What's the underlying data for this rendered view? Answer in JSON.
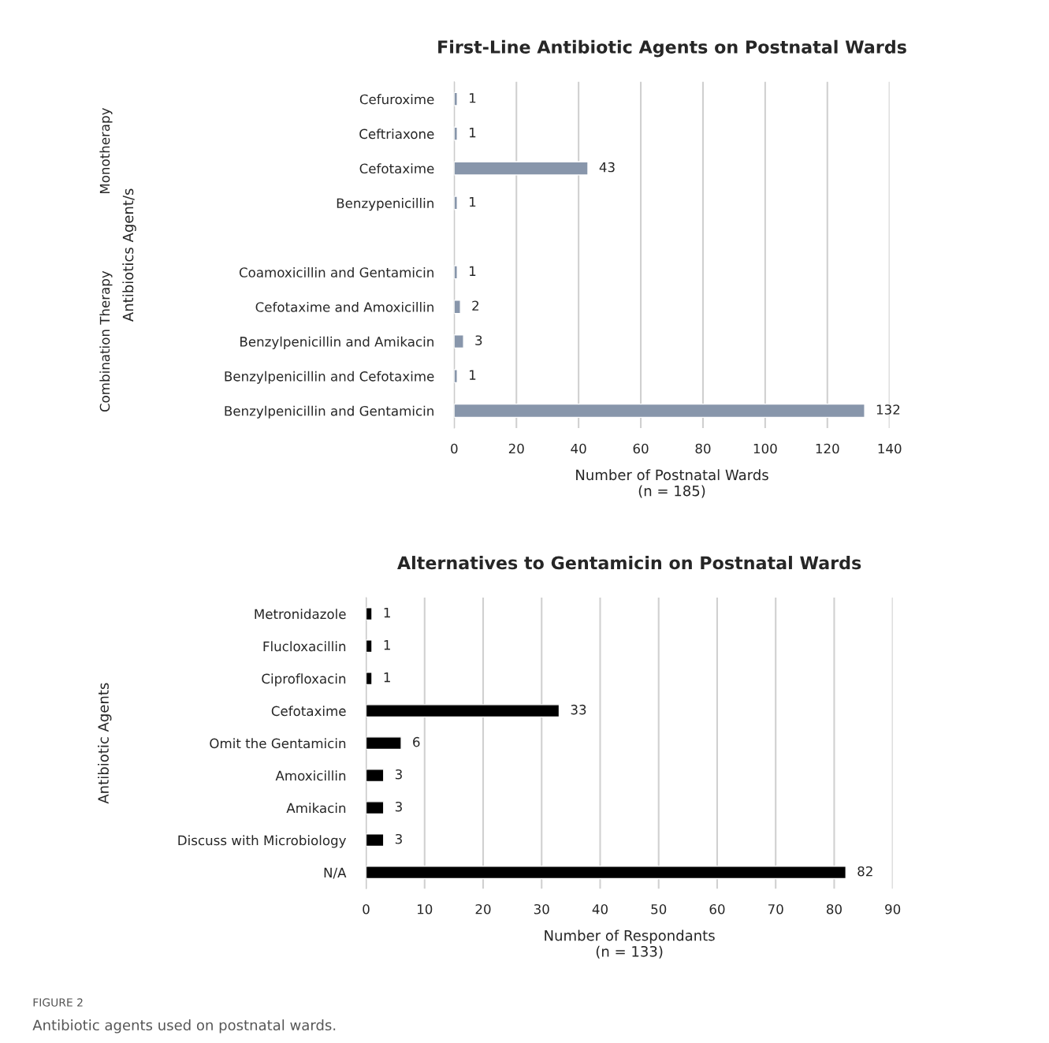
{
  "chart_data": [
    {
      "type": "bar",
      "orientation": "horizontal",
      "title": "First-Line Antibiotic Agents on Postnatal Wards",
      "xlabel": "Number of Postnatal Wards\n(n = 185)",
      "ylabel": "Antibiotics Agent/s",
      "categories": [
        "Cefuroxime",
        "Ceftriaxone",
        "Cefotaxime",
        "Benzypenicillin",
        null,
        "Coamoxicillin and Gentamicin",
        "Cefotaxime and Amoxicillin",
        "Benzylpenicillin and Amikacin",
        "Benzylpenicillin and Cefotaxime",
        "Benzylpenicillin and Gentamicin"
      ],
      "values": [
        1,
        1,
        43,
        1,
        null,
        1,
        2,
        3,
        1,
        132
      ],
      "color": "#8896ab",
      "xlim": [
        0,
        140
      ],
      "xticks": [
        0,
        20,
        40,
        60,
        80,
        100,
        120,
        140
      ],
      "grid": "x",
      "data_labels": true,
      "legend": false,
      "annotations": [
        "Monotherapy",
        "Combination Therapy"
      ]
    },
    {
      "type": "bar",
      "orientation": "horizontal",
      "title": "Alternatives to Gentamicin on Postnatal Wards",
      "xlabel": "Number of Respondants\n(n = 133)",
      "ylabel": "Antibiotic Agents",
      "categories": [
        "Metronidazole",
        "Flucloxacillin",
        "Ciprofloxacin",
        "Cefotaxime",
        "Omit the Gentamicin",
        "Amoxicillin",
        "Amikacin",
        "Discuss with Microbiology",
        "N/A"
      ],
      "values": [
        1,
        1,
        1,
        33,
        6,
        3,
        3,
        3,
        82
      ],
      "color": "#000000",
      "xlim": [
        0,
        90
      ],
      "xticks": [
        0,
        10,
        20,
        30,
        40,
        50,
        60,
        70,
        80,
        90
      ],
      "grid": "x",
      "data_labels": true,
      "legend": false,
      "annotations": [
        "FIGURE 2",
        "Antibiotic agents used on postnatal wards."
      ]
    }
  ]
}
